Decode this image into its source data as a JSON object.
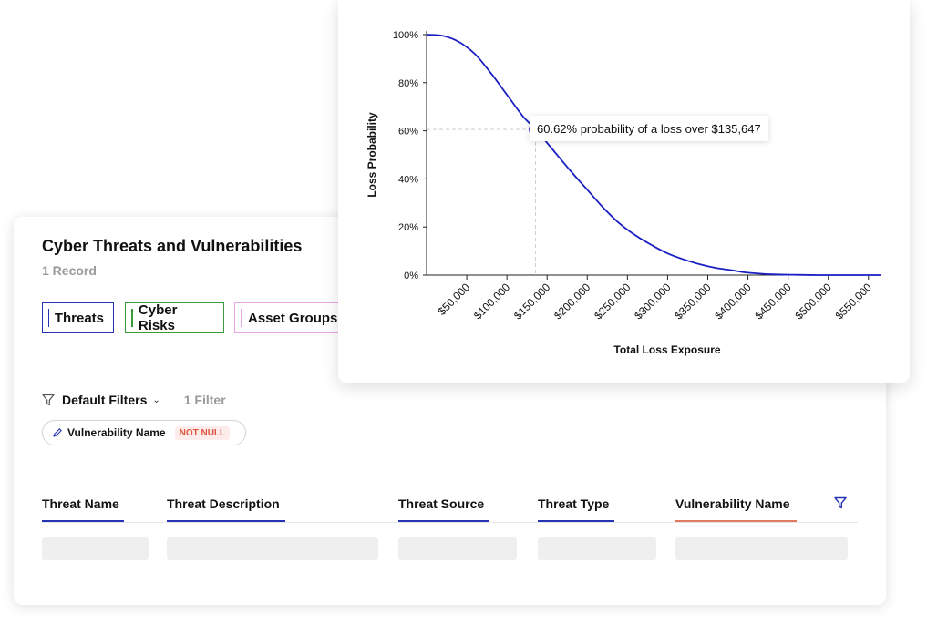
{
  "table_view": {
    "title": "Cyber Threats and Vulnerabilities",
    "record_count": "1 Record",
    "tabs": [
      {
        "label": "Threats",
        "color": "#2733b5"
      },
      {
        "label": "Cyber Risks",
        "color": "#3a9b3a"
      },
      {
        "label": "Asset Groups",
        "color": "#e8a7e8"
      }
    ],
    "filters": {
      "label": "Default Filters",
      "count": "1 Filter",
      "chip": {
        "field": "Vulnerability Name",
        "condition": "NOT NULL"
      }
    },
    "columns": [
      {
        "label": "Threat Name"
      },
      {
        "label": "Threat Description"
      },
      {
        "label": "Threat Source"
      },
      {
        "label": "Threat Type"
      },
      {
        "label": "Vulnerability Name"
      }
    ]
  },
  "chart_data": {
    "type": "line",
    "title": "",
    "xlabel": "Total Loss Exposure",
    "ylabel": "Loss Probability",
    "x_ticks": [
      "$50,000",
      "$100,000",
      "$150,000",
      "$200,000",
      "$250,000",
      "$300,000",
      "$350,000",
      "$400,000",
      "$450,000",
      "$500,000",
      "$550,000"
    ],
    "y_ticks": [
      "0%",
      "20%",
      "40%",
      "60%",
      "80%",
      "100%"
    ],
    "xlim": [
      0,
      565000
    ],
    "ylim": [
      0,
      100
    ],
    "grid": false,
    "series": [
      {
        "color": "#1a1fc2",
        "x": [
          0,
          20000,
          40000,
          60000,
          80000,
          100000,
          120000,
          135647,
          160000,
          180000,
          200000,
          220000,
          240000,
          260000,
          280000,
          300000,
          320000,
          340000,
          360000,
          380000,
          400000,
          430000,
          460000,
          500000,
          565000
        ],
        "y": [
          100,
          99.5,
          97,
          92,
          84,
          75,
          66,
          60.62,
          51,
          43,
          35.5,
          28,
          21.5,
          16.5,
          12.5,
          9,
          6.5,
          4.5,
          3,
          2,
          1,
          0.3,
          0.1,
          0,
          0
        ]
      }
    ],
    "highlight": {
      "x": 135647,
      "y": 60.62,
      "label": "60.62% probability of a loss over $135,647"
    }
  }
}
